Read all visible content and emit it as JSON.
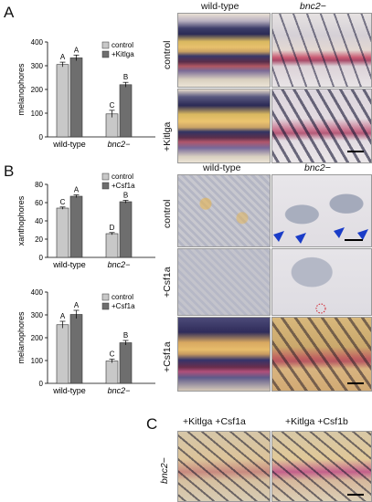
{
  "panels": {
    "a": "A",
    "b": "B",
    "c": "C"
  },
  "photo_titles": {
    "wild_type": "wild-type",
    "mutant": "bnc2−",
    "c_left": "+Kitlga +Csf1a",
    "c_right": "+Kitlga +Csf1b"
  },
  "row_labels": {
    "a_top": "control",
    "a_bottom": "+Kitlga",
    "b_top": "control",
    "b_mid": "+Csf1a",
    "b_bottom": "+Csf1a",
    "c": "bnc2−"
  },
  "chart_data": [
    {
      "type": "bar",
      "panel": "A",
      "categories": [
        "wild-type",
        "bnc2−"
      ],
      "series": [
        {
          "name": "control",
          "values": [
            305,
            97
          ],
          "errors": [
            10,
            15
          ],
          "color": "#c8c8c8"
        },
        {
          "name": "+Kitlga",
          "values": [
            333,
            220
          ],
          "errors": [
            12,
            10
          ],
          "color": "#6e6e6e"
        }
      ],
      "letters": [
        [
          "A",
          "A"
        ],
        [
          "C",
          "B"
        ]
      ],
      "ylabel": "melanophores",
      "ylim": [
        0,
        400
      ],
      "yticks": [
        "0",
        "100",
        "200",
        "300",
        "400"
      ]
    },
    {
      "type": "bar",
      "panel": "B-top",
      "categories": [
        "wild-type",
        "bnc2−"
      ],
      "series": [
        {
          "name": "control",
          "values": [
            54,
            26
          ],
          "errors": [
            1.2,
            1.2
          ],
          "color": "#c8c8c8"
        },
        {
          "name": "+Csf1a",
          "values": [
            67,
            61
          ],
          "errors": [
            1.5,
            1.5
          ],
          "color": "#6e6e6e"
        }
      ],
      "letters": [
        [
          "C",
          "A"
        ],
        [
          "D",
          "B"
        ]
      ],
      "ylabel": "xanthophores",
      "ylim": [
        0,
        80
      ],
      "yticks": [
        "0",
        "20",
        "40",
        "60",
        "80"
      ]
    },
    {
      "type": "bar",
      "panel": "B-bottom",
      "categories": [
        "wild-type",
        "bnc2−"
      ],
      "series": [
        {
          "name": "control",
          "values": [
            257,
            98
          ],
          "errors": [
            15,
            8
          ],
          "color": "#c8c8c8"
        },
        {
          "name": "+Csf1a",
          "values": [
            302,
            178
          ],
          "errors": [
            18,
            10
          ],
          "color": "#6e6e6e"
        }
      ],
      "letters": [
        [
          "A",
          "A"
        ],
        [
          "C",
          "B"
        ]
      ],
      "ylabel": "melanophores",
      "ylim": [
        0,
        400
      ],
      "yticks": [
        "0",
        "100",
        "200",
        "300",
        "400"
      ]
    }
  ],
  "colors": {
    "control_bar": "#c8c8c8",
    "treated_bar": "#6e6e6e",
    "annotation_blue": "#1a3cc8",
    "annotation_red": "#d0202a"
  }
}
